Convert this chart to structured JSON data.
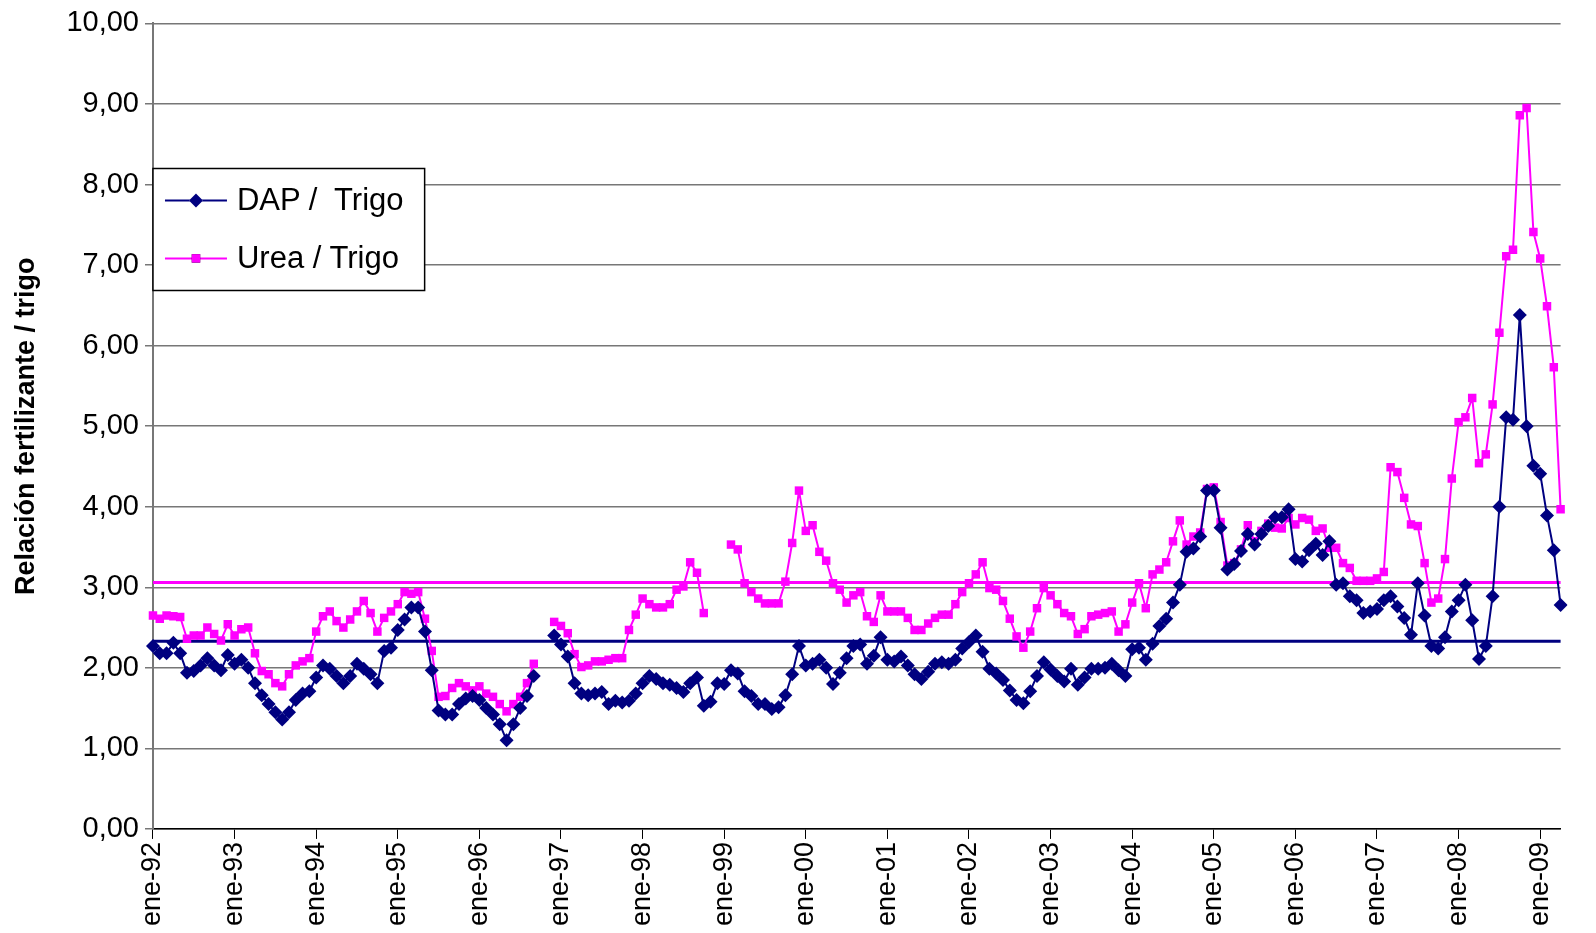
{
  "chart_data": {
    "type": "line",
    "ylabel": "Relación fertilizante / trigo",
    "categories": [
      "ene-92",
      null,
      null,
      null,
      null,
      null,
      null,
      null,
      null,
      null,
      null,
      null,
      "ene-93",
      null,
      null,
      null,
      null,
      null,
      null,
      null,
      null,
      null,
      null,
      null,
      "ene-94",
      null,
      null,
      null,
      null,
      null,
      null,
      null,
      null,
      null,
      null,
      null,
      "ene-95",
      null,
      null,
      null,
      null,
      null,
      null,
      null,
      null,
      null,
      null,
      null,
      "ene-96",
      null,
      null,
      null,
      null,
      null,
      null,
      null,
      null,
      null,
      null,
      null,
      "ene-97",
      null,
      null,
      null,
      null,
      null,
      null,
      null,
      null,
      null,
      null,
      null,
      "ene-98",
      null,
      null,
      null,
      null,
      null,
      null,
      null,
      null,
      null,
      null,
      null,
      "ene-99",
      null,
      null,
      null,
      null,
      null,
      null,
      null,
      null,
      null,
      null,
      null,
      "ene-00",
      null,
      null,
      null,
      null,
      null,
      null,
      null,
      null,
      null,
      null,
      null,
      "ene-01",
      null,
      null,
      null,
      null,
      null,
      null,
      null,
      null,
      null,
      null,
      null,
      "ene-02",
      null,
      null,
      null,
      null,
      null,
      null,
      null,
      null,
      null,
      null,
      null,
      "ene-03",
      null,
      null,
      null,
      null,
      null,
      null,
      null,
      null,
      null,
      null,
      null,
      "ene-04",
      null,
      null,
      null,
      null,
      null,
      null,
      null,
      null,
      null,
      null,
      null,
      "ene-05",
      null,
      null,
      null,
      null,
      null,
      null,
      null,
      null,
      null,
      null,
      null,
      "ene-06",
      null,
      null,
      null,
      null,
      null,
      null,
      null,
      null,
      null,
      null,
      null,
      "ene-07",
      null,
      null,
      null,
      null,
      null,
      null,
      null,
      null,
      null,
      null,
      null,
      "ene-08",
      null,
      null,
      null,
      null,
      null,
      null,
      null,
      null,
      null,
      null,
      null,
      "ene-09",
      null,
      null,
      null
    ],
    "series": [
      {
        "name": "DAP /  Trigo",
        "color": "#000080",
        "marker": "diamond",
        "values": [
          2.27,
          2.18,
          2.18,
          2.31,
          2.18,
          1.94,
          1.96,
          2.03,
          2.12,
          2.03,
          1.97,
          2.16,
          2.05,
          2.1,
          2.0,
          1.81,
          1.66,
          1.55,
          1.45,
          1.36,
          1.45,
          1.6,
          1.68,
          1.71,
          1.88,
          2.03,
          1.99,
          1.9,
          1.81,
          1.9,
          2.05,
          1.99,
          1.92,
          1.81,
          2.21,
          2.25,
          2.47,
          2.6,
          2.75,
          2.75,
          2.45,
          1.97,
          1.47,
          1.42,
          1.42,
          1.55,
          1.62,
          1.65,
          1.6,
          1.5,
          1.42,
          1.3,
          1.1,
          1.3,
          1.5,
          1.65,
          1.9,
          null,
          null,
          2.4,
          2.29,
          2.14,
          1.81,
          1.68,
          1.66,
          1.68,
          1.7,
          1.55,
          1.59,
          1.57,
          1.59,
          1.68,
          1.81,
          1.9,
          1.86,
          1.81,
          1.79,
          1.75,
          1.7,
          1.81,
          1.88,
          1.53,
          1.58,
          1.81,
          1.8,
          1.97,
          1.93,
          1.71,
          1.65,
          1.55,
          1.55,
          1.49,
          1.51,
          1.66,
          1.92,
          2.27,
          2.03,
          2.05,
          2.1,
          2.0,
          1.8,
          1.94,
          2.12,
          2.27,
          2.29,
          2.05,
          2.15,
          2.38,
          2.1,
          2.08,
          2.14,
          2.03,
          1.92,
          1.86,
          1.95,
          2.05,
          2.07,
          2.05,
          2.1,
          2.24,
          2.32,
          2.4,
          2.2,
          1.99,
          1.93,
          1.85,
          1.72,
          1.6,
          1.56,
          1.71,
          1.9,
          2.07,
          1.98,
          1.9,
          1.83,
          1.99,
          1.79,
          1.88,
          1.99,
          1.99,
          2.0,
          2.05,
          1.97,
          1.9,
          2.23,
          2.25,
          2.1,
          2.3,
          2.52,
          2.61,
          2.81,
          3.03,
          3.44,
          3.48,
          3.63,
          4.2,
          4.2,
          3.74,
          3.22,
          3.29,
          3.45,
          3.66,
          3.53,
          3.66,
          3.76,
          3.87,
          3.87,
          3.97,
          3.35,
          3.32,
          3.46,
          3.54,
          3.4,
          3.57,
          3.03,
          3.05,
          2.89,
          2.84,
          2.68,
          2.7,
          2.73,
          2.84,
          2.89,
          2.76,
          2.62,
          2.41,
          3.05,
          2.65,
          2.27,
          2.24,
          2.38,
          2.7,
          2.84,
          3.03,
          2.59,
          2.11,
          2.27,
          2.89,
          4.0,
          5.11,
          5.08,
          6.38,
          5.0,
          4.51,
          4.41,
          3.89,
          3.46,
          2.78
        ]
      },
      {
        "name": "Urea / Trigo",
        "color": "#ff00ff",
        "marker": "square",
        "values": [
          2.65,
          2.61,
          2.65,
          2.64,
          2.63,
          2.36,
          2.4,
          2.4,
          2.5,
          2.42,
          2.34,
          2.54,
          2.4,
          2.48,
          2.5,
          2.18,
          1.96,
          1.92,
          1.81,
          1.77,
          1.92,
          2.03,
          2.08,
          2.12,
          2.45,
          2.64,
          2.7,
          2.58,
          2.5,
          2.6,
          2.7,
          2.83,
          2.68,
          2.45,
          2.62,
          2.7,
          2.79,
          2.94,
          2.92,
          2.94,
          2.61,
          2.21,
          1.64,
          1.65,
          1.75,
          1.81,
          1.77,
          1.72,
          1.77,
          1.68,
          1.64,
          1.55,
          1.46,
          1.55,
          1.64,
          1.81,
          2.05,
          null,
          null,
          2.57,
          2.52,
          2.43,
          2.17,
          2.01,
          2.03,
          2.08,
          2.08,
          2.1,
          2.12,
          2.12,
          2.47,
          2.66,
          2.86,
          2.79,
          2.75,
          2.75,
          2.79,
          2.97,
          3.01,
          3.31,
          3.18,
          2.68,
          null,
          null,
          null,
          3.53,
          3.47,
          3.05,
          2.94,
          2.86,
          2.8,
          2.8,
          2.8,
          3.07,
          3.55,
          4.2,
          3.7,
          3.77,
          3.44,
          3.33,
          3.05,
          2.97,
          2.81,
          2.9,
          2.94,
          2.64,
          2.57,
          2.9,
          2.7,
          2.7,
          2.7,
          2.62,
          2.47,
          2.47,
          2.55,
          2.62,
          2.66,
          2.66,
          2.79,
          2.94,
          3.05,
          3.16,
          3.31,
          2.99,
          2.97,
          2.83,
          2.61,
          2.39,
          2.25,
          2.45,
          2.74,
          2.99,
          2.9,
          2.79,
          2.68,
          2.64,
          2.42,
          2.48,
          2.64,
          2.66,
          2.68,
          2.7,
          2.45,
          2.54,
          2.81,
          3.05,
          2.74,
          3.16,
          3.22,
          3.31,
          3.57,
          3.83,
          3.53,
          3.63,
          3.68,
          4.22,
          4.24,
          3.81,
          3.27,
          3.3,
          3.47,
          3.77,
          3.57,
          3.7,
          3.79,
          3.74,
          3.73,
          3.86,
          3.78,
          3.86,
          3.84,
          3.7,
          3.73,
          3.49,
          3.49,
          3.3,
          3.24,
          3.08,
          3.08,
          3.08,
          3.11,
          3.19,
          4.49,
          4.43,
          4.11,
          3.78,
          3.76,
          3.3,
          2.81,
          2.86,
          3.35,
          4.35,
          5.05,
          5.11,
          5.35,
          4.54,
          4.65,
          5.27,
          6.16,
          7.11,
          7.19,
          8.86,
          8.95,
          7.41,
          7.08,
          6.49,
          5.73,
          3.97
        ]
      }
    ],
    "ylim": [
      0,
      10
    ],
    "yticks": [
      {
        "value": 0,
        "label": "0,00"
      },
      {
        "value": 1,
        "label": "1,00"
      },
      {
        "value": 2,
        "label": "2,00"
      },
      {
        "value": 3,
        "label": "3,00"
      },
      {
        "value": 4,
        "label": "4,00"
      },
      {
        "value": 5,
        "label": "5,00"
      },
      {
        "value": 6,
        "label": "6,00"
      },
      {
        "value": 7,
        "label": "7,00"
      },
      {
        "value": 8,
        "label": "8,00"
      },
      {
        "value": 9,
        "label": "9,00"
      },
      {
        "value": 10,
        "label": "10,00"
      }
    ],
    "grid": "y",
    "legend": "top left",
    "ref_lines": [
      {
        "axis": "y",
        "value": 2.33,
        "color": "#000080"
      },
      {
        "axis": "y",
        "value": 3.06,
        "color": "#ff00ff"
      }
    ]
  }
}
